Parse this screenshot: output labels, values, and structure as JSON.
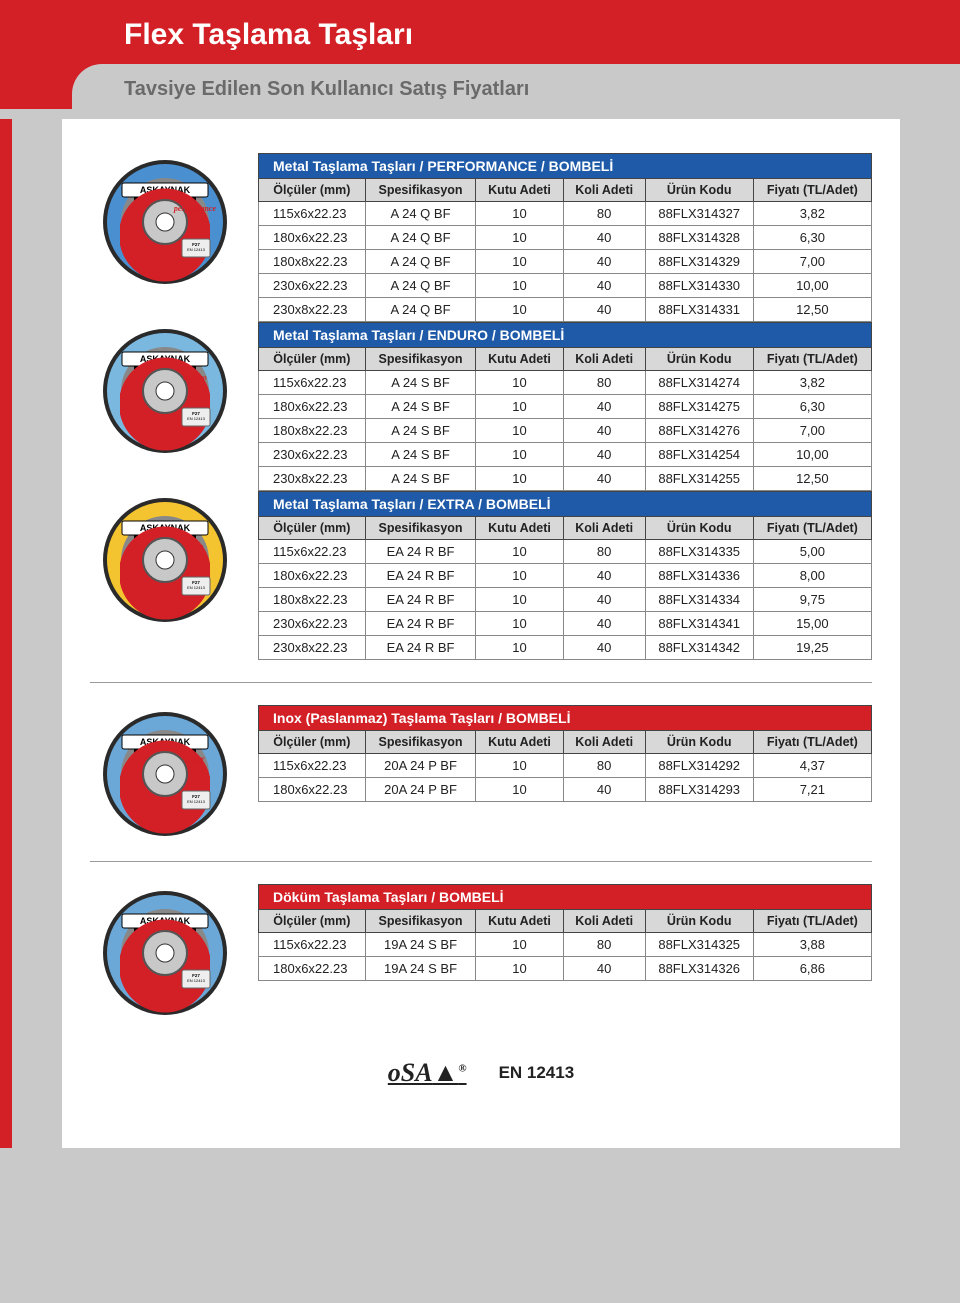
{
  "page_title": "Flex Taşlama Taşları",
  "subtitle": "Tavsiye Edilen Son Kullanıcı Satış Fiyatları",
  "columns": [
    "Ölçüler (mm)",
    "Spesifikasyon",
    "Kutu Adeti",
    "Koli Adeti",
    "Ürün Kodu",
    "Fiyatı (TL/Adet)"
  ],
  "footer_standard": "EN 12413",
  "footer_mark": "oSA",
  "discs": [
    {
      "label": "A 24 Q BF",
      "sublabel": "performance",
      "ring": "#4a90d0",
      "accent": "#d31f26"
    },
    {
      "label": "A 24 S BF",
      "sublabel": "enduro",
      "ring": "#7ab8e0",
      "accent": "#d31f26"
    },
    {
      "label": "EA 24 R BF",
      "sublabel": "extra",
      "ring": "#f4c430",
      "accent": "#d31f26"
    },
    {
      "label": "20A 24 P BF",
      "sublabel": "INOX",
      "ring": "#6ba8d8",
      "accent": "#d31f26"
    },
    {
      "label": "19A 24 S BF",
      "sublabel": "",
      "ring": "#6ba8d8",
      "accent": "#d31f26"
    }
  ],
  "tables": [
    {
      "header_bg": "#1e5aa8",
      "title": "Metal Taşlama Taşları / PERFORMANCE / BOMBELİ",
      "rows": [
        [
          "115x6x22.23",
          "A 24 Q BF",
          "10",
          "80",
          "88FLX314327",
          "3,82"
        ],
        [
          "180x6x22.23",
          "A 24 Q BF",
          "10",
          "40",
          "88FLX314328",
          "6,30"
        ],
        [
          "180x8x22.23",
          "A 24 Q BF",
          "10",
          "40",
          "88FLX314329",
          "7,00"
        ],
        [
          "230x6x22.23",
          "A 24 Q BF",
          "10",
          "40",
          "88FLX314330",
          "10,00"
        ],
        [
          "230x8x22.23",
          "A 24 Q BF",
          "10",
          "40",
          "88FLX314331",
          "12,50"
        ]
      ]
    },
    {
      "header_bg": "#1e5aa8",
      "title": "Metal Taşlama Taşları / ENDURO / BOMBELİ",
      "rows": [
        [
          "115x6x22.23",
          "A 24 S BF",
          "10",
          "80",
          "88FLX314274",
          "3,82"
        ],
        [
          "180x6x22.23",
          "A 24 S BF",
          "10",
          "40",
          "88FLX314275",
          "6,30"
        ],
        [
          "180x8x22.23",
          "A 24 S BF",
          "10",
          "40",
          "88FLX314276",
          "7,00"
        ],
        [
          "230x6x22.23",
          "A 24 S BF",
          "10",
          "40",
          "88FLX314254",
          "10,00"
        ],
        [
          "230x8x22.23",
          "A 24 S BF",
          "10",
          "40",
          "88FLX314255",
          "12,50"
        ]
      ]
    },
    {
      "header_bg": "#1e5aa8",
      "title": "Metal Taşlama Taşları / EXTRA / BOMBELİ",
      "rows": [
        [
          "115x6x22.23",
          "EA 24 R BF",
          "10",
          "80",
          "88FLX314335",
          "5,00"
        ],
        [
          "180x6x22.23",
          "EA 24 R BF",
          "10",
          "40",
          "88FLX314336",
          "8,00"
        ],
        [
          "180x8x22.23",
          "EA 24 R BF",
          "10",
          "40",
          "88FLX314334",
          "9,75"
        ],
        [
          "230x6x22.23",
          "EA 24 R BF",
          "10",
          "40",
          "88FLX314341",
          "15,00"
        ],
        [
          "230x8x22.23",
          "EA 24 R BF",
          "10",
          "40",
          "88FLX314342",
          "19,25"
        ]
      ]
    },
    {
      "header_bg": "#d31f26",
      "title": "Inox (Paslanmaz) Taşlama Taşları / BOMBELİ",
      "rows": [
        [
          "115x6x22.23",
          "20A 24 P BF",
          "10",
          "80",
          "88FLX314292",
          "4,37"
        ],
        [
          "180x6x22.23",
          "20A 24 P BF",
          "10",
          "40",
          "88FLX314293",
          "7,21"
        ]
      ]
    },
    {
      "header_bg": "#d31f26",
      "title": "Döküm Taşlama Taşları / BOMBELİ",
      "rows": [
        [
          "115x6x22.23",
          "19A 24 S BF",
          "10",
          "80",
          "88FLX314325",
          "3,88"
        ],
        [
          "180x6x22.23",
          "19A 24 S BF",
          "10",
          "40",
          "88FLX314326",
          "6,86"
        ]
      ]
    }
  ]
}
